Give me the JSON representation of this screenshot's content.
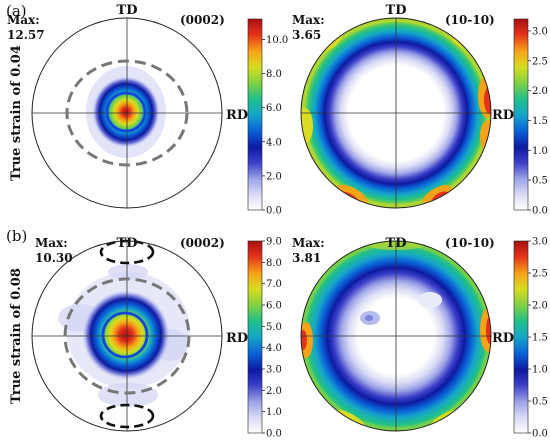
{
  "rows": [
    {
      "panel_label": "(a)",
      "side_label": "True strain of 0.04",
      "plots": [
        {
          "max_label": "Max:",
          "max_value": "12.57",
          "axis_top": "TD",
          "axis_right": "RD",
          "plane": "(0002)",
          "peak": 12.57
        },
        {
          "max_label": "Max:",
          "max_value": "3.65",
          "axis_top": "TD",
          "axis_right": "RD",
          "plane": "(10-10)",
          "peak": 3.65
        }
      ],
      "colorbars": [
        {
          "ticks": [
            "10.0",
            "8.0",
            "6.0",
            "4.0",
            "2.0",
            "0.0"
          ],
          "min": 0,
          "max": 11.2,
          "tick_values": [
            10,
            8,
            6,
            4,
            2,
            0
          ]
        },
        {
          "ticks": [
            "3.0",
            "2.5",
            "2.0",
            "1.5",
            "1.0",
            "0.5",
            "0.0"
          ],
          "min": 0,
          "max": 3.2,
          "tick_values": [
            3,
            2.5,
            2,
            1.5,
            1,
            0.5,
            0
          ]
        }
      ]
    },
    {
      "panel_label": "(b)",
      "side_label": "True strain of 0.08",
      "plots": [
        {
          "max_label": "Max:",
          "max_value": "10.30",
          "axis_top": "TD",
          "axis_right": "RD",
          "plane": "(0002)",
          "peak": 10.3
        },
        {
          "max_label": "Max:",
          "max_value": "3.81",
          "axis_top": "TD",
          "axis_right": "RD",
          "plane": "(10-10)",
          "peak": 3.81
        }
      ],
      "colorbars": [
        {
          "ticks": [
            "9.0",
            "8.0",
            "7.0",
            "6.0",
            "5.0",
            "4.0",
            "3.0",
            "2.0",
            "1.0",
            "0.0"
          ],
          "min": 0,
          "max": 9.0,
          "tick_values": [
            9,
            8,
            7,
            6,
            5,
            4,
            3,
            2,
            1,
            0
          ]
        },
        {
          "ticks": [
            "3.0",
            "2.5",
            "2.0",
            "1.5",
            "1.0",
            "0.5",
            "0.0"
          ],
          "min": 0,
          "max": 3.0,
          "tick_values": [
            3,
            2.5,
            2,
            1.5,
            1,
            0.5,
            0
          ]
        }
      ]
    }
  ],
  "colormap": [
    "#ffffff",
    "#d9dcf4",
    "#9fa5e8",
    "#3b3fc8",
    "#0d1aa0",
    "#0a5fd6",
    "#16a6c9",
    "#1fbf8a",
    "#7bd146",
    "#d9dc22",
    "#f5a318",
    "#e4321b",
    "#a80f0f"
  ]
}
